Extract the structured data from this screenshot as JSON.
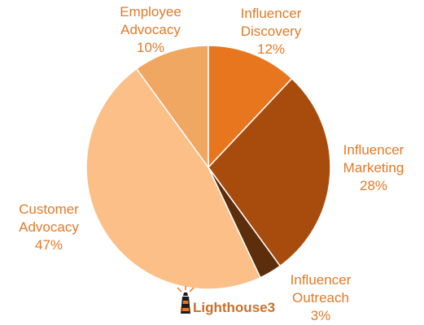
{
  "chart_data": {
    "type": "pie",
    "start": "top",
    "direction": "clockwise",
    "slices": [
      {
        "label_lines": [
          "Influencer",
          "Discovery"
        ],
        "percent_label": "12%",
        "value": 12,
        "color": "#e8761e"
      },
      {
        "label_lines": [
          "Influencer",
          "Marketing"
        ],
        "percent_label": "28%",
        "value": 28,
        "color": "#a84c0e"
      },
      {
        "label_lines": [
          "Influencer",
          "Outreach"
        ],
        "percent_label": "3%",
        "value": 3,
        "color": "#5c2e0c"
      },
      {
        "label_lines": [
          "Customer",
          "Advocacy"
        ],
        "percent_label": "47%",
        "value": 47,
        "color": "#fbbf87"
      },
      {
        "label_lines": [
          "Employee",
          "Advocacy"
        ],
        "percent_label": "10%",
        "value": 10,
        "color": "#f0a761"
      }
    ],
    "label_color": "#e07a2a"
  },
  "logo": {
    "text": "Lighthouse3",
    "icon": "lighthouse-icon",
    "color": "#c9702a"
  }
}
